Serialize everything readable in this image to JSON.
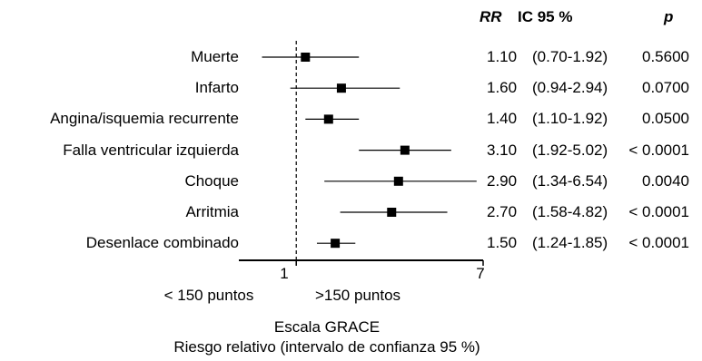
{
  "chart_data": {
    "type": "forest",
    "x_scale": "log",
    "xlim": [
      0.55,
      7
    ],
    "reference_line": 1,
    "xticks": [
      {
        "value": 1,
        "label": "1"
      },
      {
        "value": 7,
        "label": "7"
      }
    ],
    "side_labels": {
      "left": "< 150 puntos",
      "right": ">150 puntos"
    },
    "xlabel_line1": "Escala GRACE",
    "xlabel_line2": "Riesgo relativo (intervalo de confianza 95 %)",
    "columns": {
      "rr": "RR",
      "ci": "IC 95 %",
      "p": "p"
    },
    "rows": [
      {
        "label": "Muerte",
        "rr": 1.1,
        "low": 0.7,
        "high": 1.92,
        "rr_text": "1.10",
        "ci_text": "(0.70-1.92)",
        "p_text": "0.5600"
      },
      {
        "label": "Infarto",
        "rr": 1.6,
        "low": 0.94,
        "high": 2.94,
        "rr_text": "1.60",
        "ci_text": "(0.94-2.94)",
        "p_text": "0.0700"
      },
      {
        "label": "Angina/isquemia recurrente",
        "rr": 1.4,
        "low": 1.1,
        "high": 1.92,
        "rr_text": "1.40",
        "ci_text": "(1.10-1.92)",
        "p_text": "0.0500"
      },
      {
        "label": "Falla ventricular izquierda",
        "rr": 3.1,
        "low": 1.92,
        "high": 5.02,
        "rr_text": "3.10",
        "ci_text": "(1.92-5.02)",
        "p_text": "< 0.0001"
      },
      {
        "label": "Choque",
        "rr": 2.9,
        "low": 1.34,
        "high": 6.54,
        "rr_text": "2.90",
        "ci_text": "(1.34-6.54)",
        "p_text": "0.0040"
      },
      {
        "label": "Arritmia",
        "rr": 2.7,
        "low": 1.58,
        "high": 4.82,
        "rr_text": "2.70",
        "ci_text": "(1.58-4.82)",
        "p_text": "< 0.0001"
      },
      {
        "label": "Desenlace combinado",
        "rr": 1.5,
        "low": 1.24,
        "high": 1.85,
        "rr_text": "1.50",
        "ci_text": "(1.24-1.85)",
        "p_text": "< 0.0001"
      }
    ]
  }
}
